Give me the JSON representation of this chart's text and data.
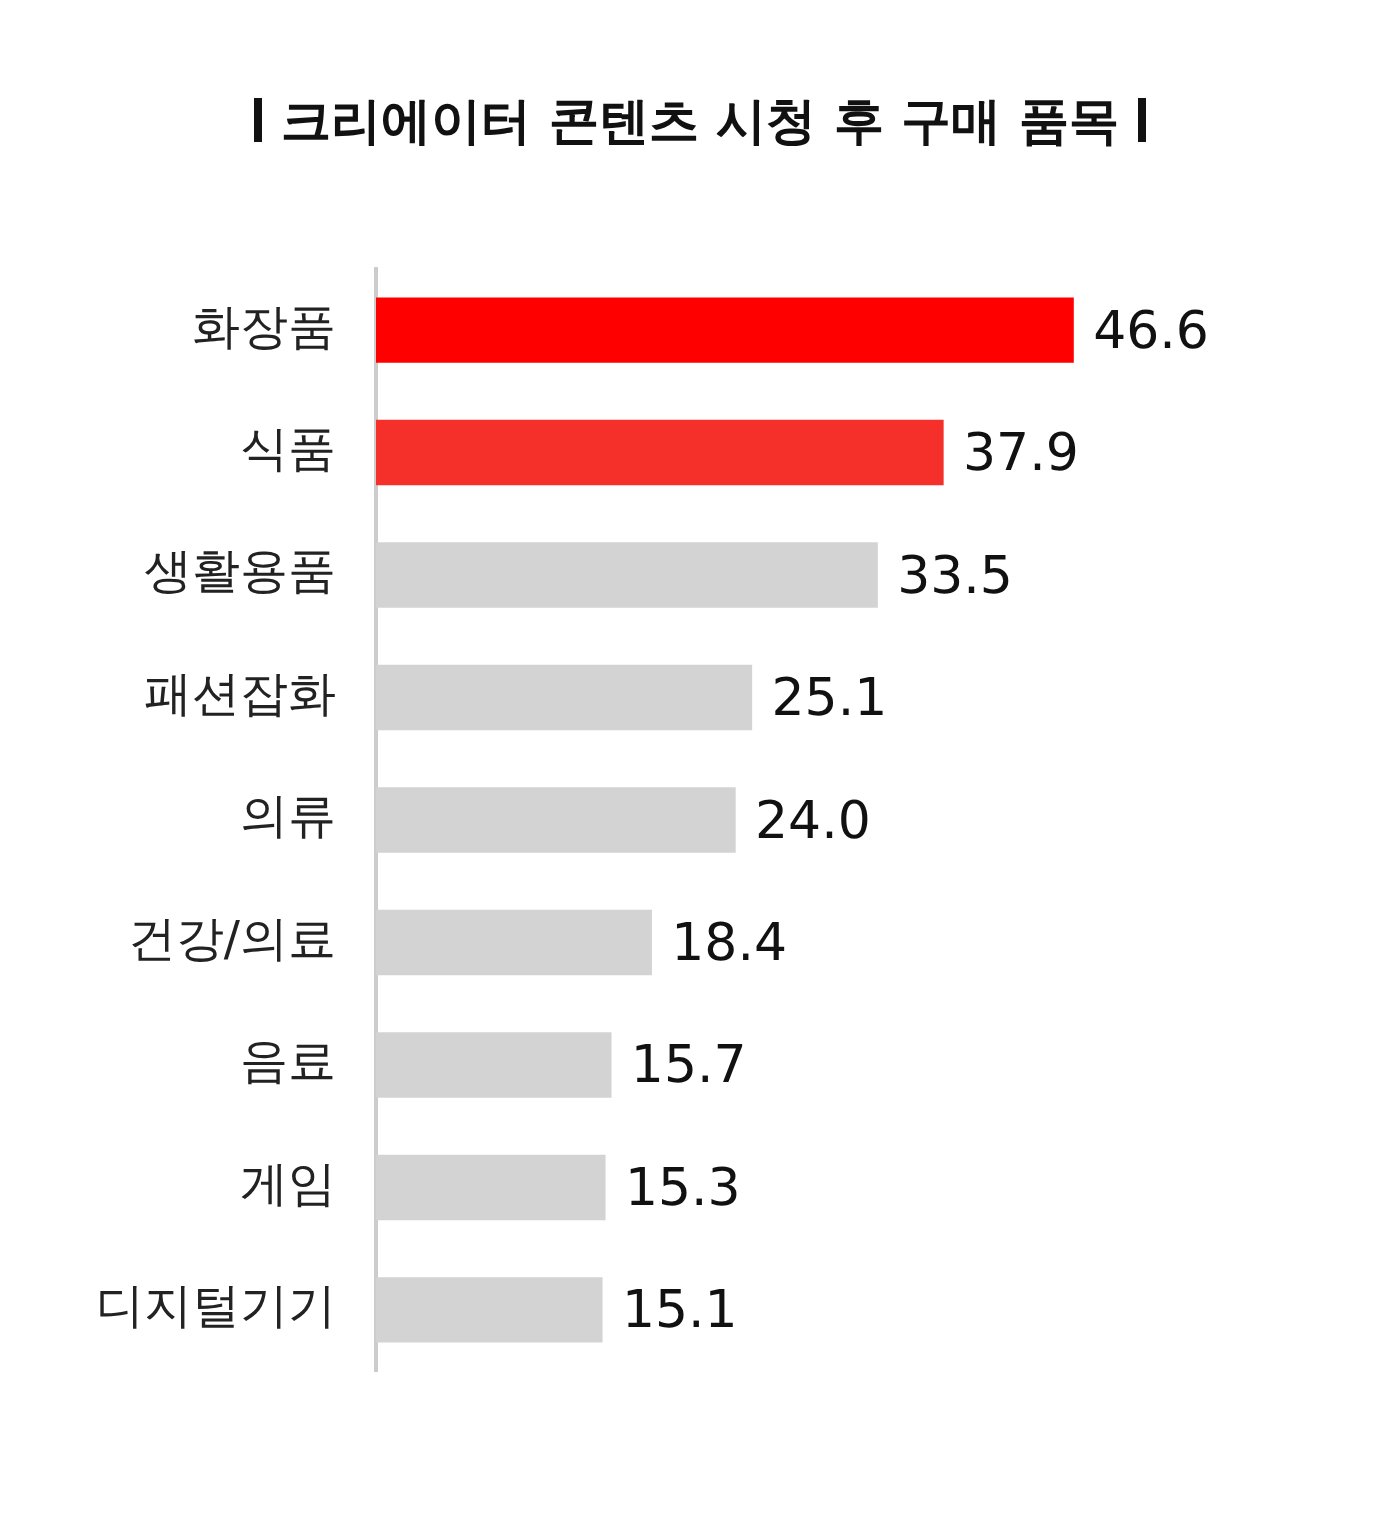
{
  "chart_data": {
    "type": "bar",
    "orientation": "horizontal",
    "title": "크리에이터 콘텐츠 시청 후 구매 품목",
    "categories": [
      "화장품",
      "식품",
      "생활용품",
      "패션잡화",
      "의류",
      "건강/의료",
      "음료",
      "게임",
      "디지털기기"
    ],
    "values": [
      46.6,
      37.9,
      33.5,
      25.1,
      24.0,
      18.4,
      15.7,
      15.3,
      15.1
    ],
    "value_labels": [
      "46.6",
      "37.9",
      "33.5",
      "25.1",
      "24.0",
      "18.4",
      "15.7",
      "15.3",
      "15.1"
    ],
    "colors": [
      "#ff0000",
      "#f5302a",
      "#d3d3d3",
      "#d3d3d3",
      "#d3d3d3",
      "#d3d3d3",
      "#d3d3d3",
      "#d3d3d3",
      "#d3d3d3"
    ],
    "tick_labels": "y",
    "grid": false,
    "legend": false
  }
}
